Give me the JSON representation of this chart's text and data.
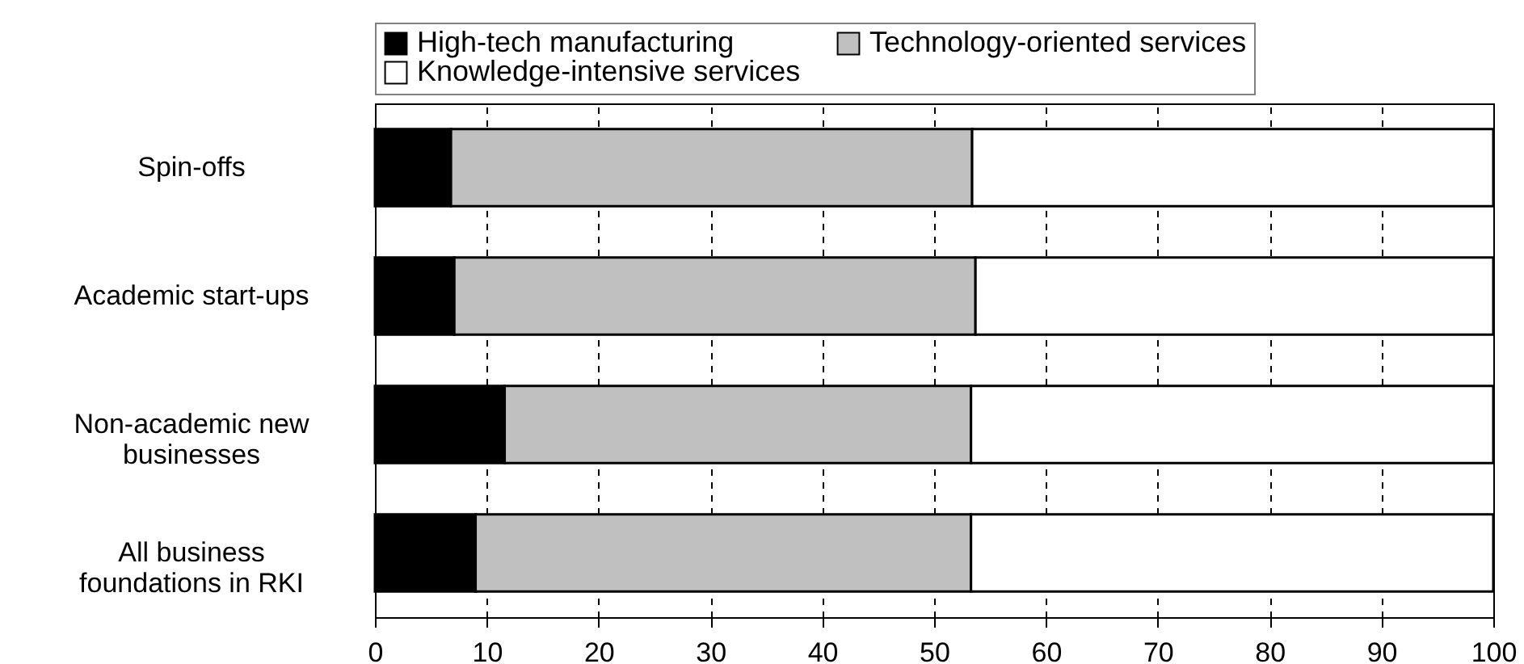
{
  "chart_data": {
    "type": "bar",
    "orientation": "horizontal",
    "stacked": true,
    "categories": [
      "Spin-offs",
      "Academic start-ups",
      "Non-academic new businesses",
      "All business foundations in RKI"
    ],
    "series": [
      {
        "name": "High-tech manufacturing",
        "color": "#000000",
        "values": [
          6.8,
          7.1,
          11.6,
          9.0
        ]
      },
      {
        "name": "Technology-oriented services",
        "color": "#c0c0c0",
        "values": [
          46.6,
          46.6,
          41.7,
          44.3
        ]
      },
      {
        "name": "Knowledge-intensive services",
        "color": "#ffffff",
        "values": [
          46.6,
          46.3,
          46.7,
          46.7
        ]
      }
    ],
    "xlim": [
      0,
      100
    ],
    "xticks": [
      0,
      10,
      20,
      30,
      40,
      50,
      60,
      70,
      80,
      90,
      100
    ],
    "grid": "x",
    "line_style": "dashed",
    "legend": "top"
  }
}
